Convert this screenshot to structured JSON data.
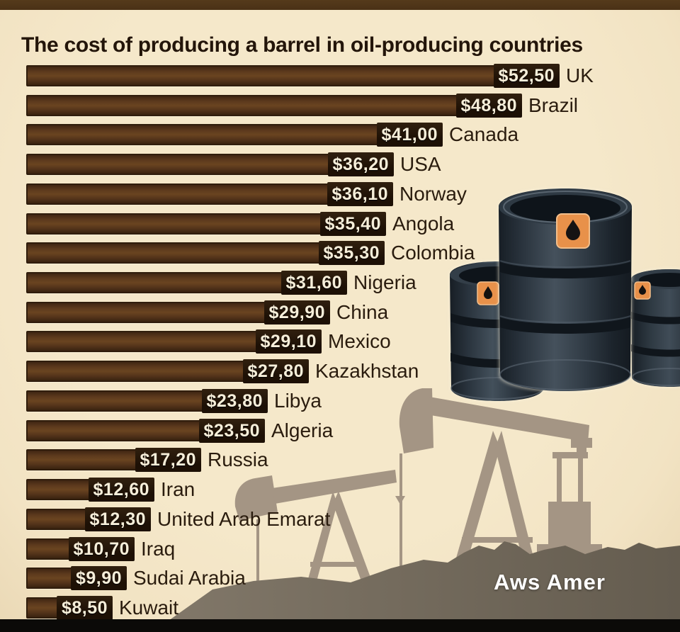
{
  "title": "The cost of producing a barrel in oil-producing countries",
  "watermark": "Aws Amer",
  "chart_data": {
    "type": "bar",
    "orientation": "horizontal",
    "title": "The cost of producing a barrel in oil-producing countries",
    "unit": "USD per barrel",
    "decimal_separator": ",",
    "xlim": [
      0,
      55
    ],
    "grid": false,
    "legend": false,
    "categories": [
      "UK",
      "Brazil",
      "Canada",
      "USA",
      "Norway",
      "Angola",
      "Colombia",
      "Nigeria",
      "China",
      "Mexico",
      "Kazakhstan",
      "Libya",
      "Algeria",
      "Russia",
      "Iran",
      "United Arab Emarat",
      "Iraq",
      "Sudai Arabia",
      "Kuwait"
    ],
    "values": [
      52.5,
      48.8,
      41.0,
      36.2,
      36.1,
      35.4,
      35.3,
      31.6,
      29.9,
      29.1,
      27.8,
      23.8,
      23.5,
      17.2,
      12.6,
      12.3,
      10.7,
      9.9,
      8.5
    ],
    "value_labels": [
      "$52,50",
      "$48,80",
      "$41,00",
      "$36,20",
      "$36,10",
      "$35,40",
      "$35,30",
      "$31,60",
      "$29,90",
      "$29,10",
      "$27,80",
      "$23,80",
      "$23,50",
      "$17,20",
      "$12,60",
      "$12,30",
      "$10,70",
      "$9,90",
      "$8,50"
    ]
  },
  "icons": {
    "barrel_label_icon": "oil-drop"
  },
  "colors": {
    "background": "#f2e3c3",
    "top_strip": "#4a3116",
    "bottom_strip": "#0b0a08",
    "bar_brown": "#5d3a1d",
    "price_box": "#1d1005",
    "price_text": "#f6eed9",
    "country_text": "#2a1c0e",
    "title_text": "#23150a",
    "ground": "#756c5e",
    "pumpjack": "#a49584",
    "barrel_body": "#2a343e",
    "barrel_label_orange": "#e8914a",
    "watermark_text": "#ffffff"
  }
}
